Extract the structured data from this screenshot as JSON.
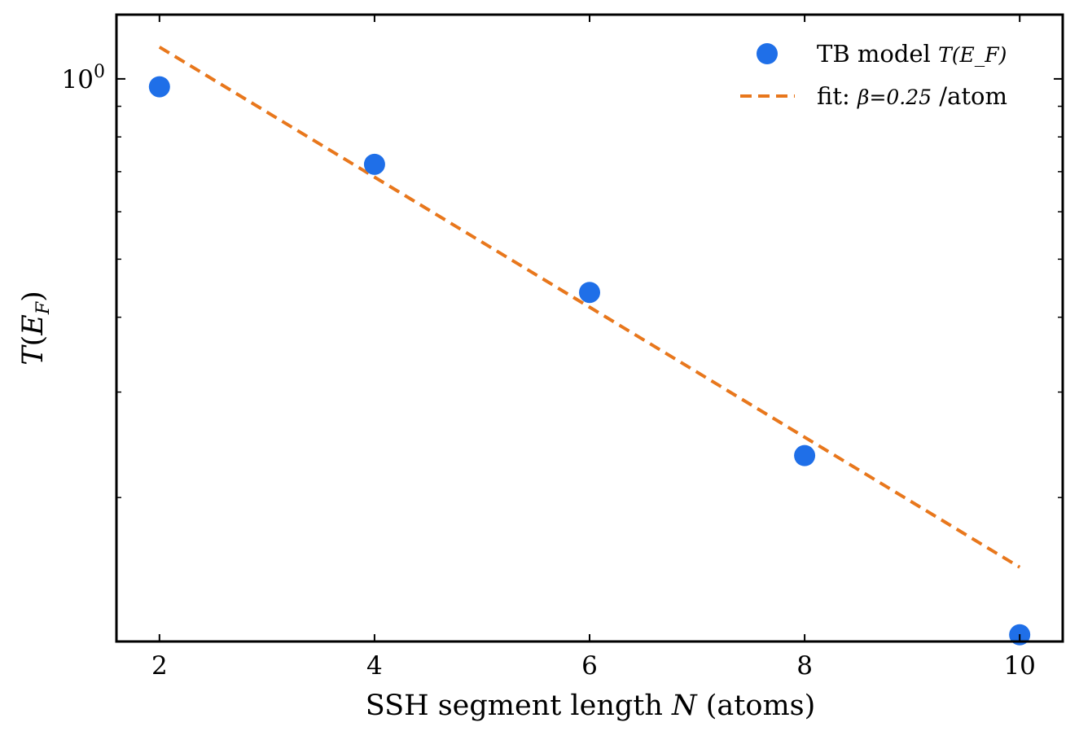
{
  "chart_data": {
    "type": "scatter",
    "xlabel": "SSH segment length N (atoms)",
    "ylabel": "T(E_F)",
    "yscale": "log",
    "xlim": [
      1.6,
      10.4
    ],
    "ylim": [
      0.115,
      1.28
    ],
    "x_ticks": [
      2,
      4,
      6,
      8,
      10
    ],
    "y_major_tick": {
      "value": 1.0,
      "label_base": "10",
      "label_exp": "0"
    },
    "y_minor_ticks": [
      0.2,
      0.3,
      0.4,
      0.5,
      0.6,
      0.7,
      0.8,
      0.9
    ],
    "series": [
      {
        "name": "TB model T(E_F)",
        "kind": "markers",
        "color": "#1f6fe8",
        "x": [
          2,
          4,
          6,
          8,
          10
        ],
        "y": [
          0.97,
          0.72,
          0.44,
          0.235,
          0.118
        ]
      },
      {
        "name": "fit: β=0.25 /atom",
        "kind": "dashed-line",
        "color": "#e8771c",
        "x": [
          2,
          10
        ],
        "y": [
          1.13,
          0.153
        ]
      }
    ],
    "legend": {
      "placement": "top-right",
      "entries": [
        {
          "label": "TB model ",
          "math": "T(E_F)"
        },
        {
          "label": "fit: ",
          "math": "β=0.25",
          "suffix": " /atom"
        }
      ]
    },
    "grid": false
  }
}
